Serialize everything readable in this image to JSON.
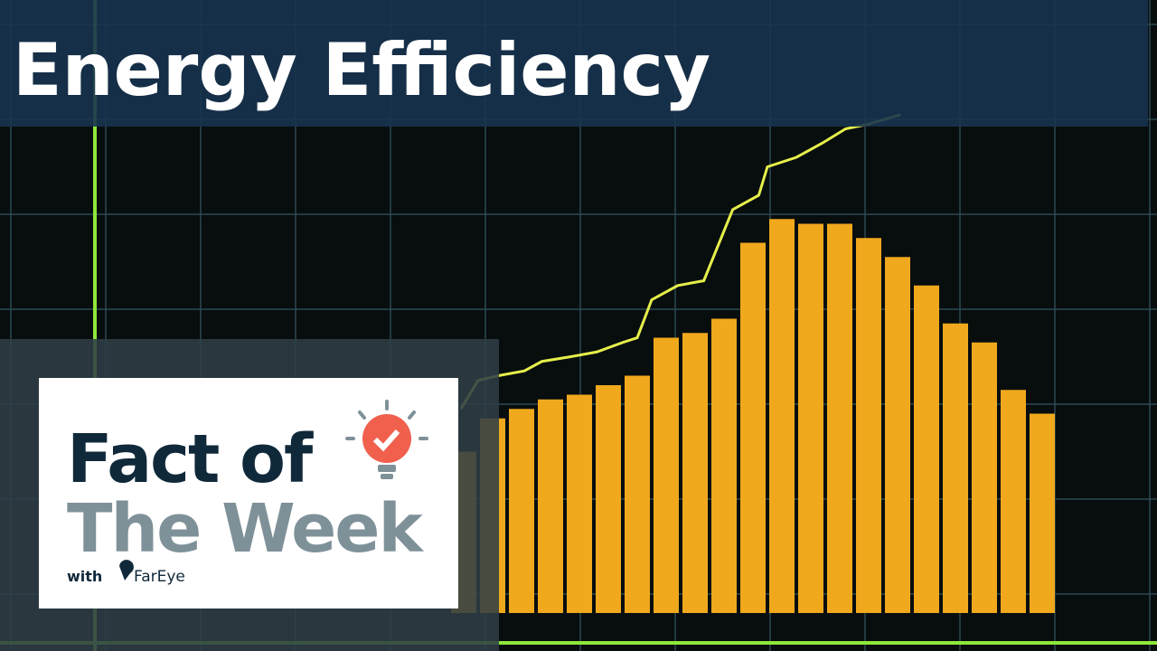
{
  "chart_data": {
    "type": "bar",
    "title": "Energy Efficiency",
    "xlim": [
      -0.5,
      20.5
    ],
    "ylim": [
      0,
      100
    ],
    "values": [
      34,
      41,
      43,
      45,
      46,
      48,
      50,
      58,
      59,
      62,
      78,
      83,
      82,
      82,
      79,
      75,
      69,
      61,
      57,
      47,
      42
    ],
    "color": "#f0a81c",
    "line": {
      "color": "#e6ef4a",
      "x": [
        -0.1,
        0.5,
        1.2,
        2.1,
        2.7,
        3.7,
        4.6,
        5.5,
        6,
        6.5,
        7.4,
        8.3,
        9.3,
        10.2,
        10.5,
        11.5,
        12.4,
        13.2,
        14,
        15.1
      ],
      "values": [
        43,
        49,
        50,
        51,
        53,
        54,
        55,
        57,
        58,
        66,
        69,
        70,
        85,
        88,
        94,
        96,
        99,
        102,
        103,
        105
      ]
    }
  },
  "badge": {
    "line1": "Fact of",
    "line2": "The Week",
    "with": "with",
    "brand": "FarEye"
  }
}
